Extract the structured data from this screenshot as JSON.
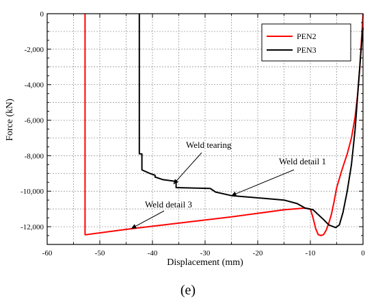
{
  "chart_data": {
    "type": "line",
    "title": "",
    "xlabel": "Displacement (mm)",
    "ylabel": "Force (kN)",
    "xlim": [
      -60,
      0
    ],
    "ylim": [
      -13000,
      0
    ],
    "x_ticks": [
      -60,
      -50,
      -40,
      -30,
      -20,
      -10,
      0
    ],
    "x_tick_labels": [
      "-60",
      "-50",
      "-40",
      "-30",
      "-20",
      "-10",
      "0"
    ],
    "y_ticks": [
      0,
      -2000,
      -4000,
      -6000,
      -8000,
      -10000,
      -12000
    ],
    "y_tick_labels": [
      "0",
      "-2,000",
      "-4,000",
      "-6,000",
      "-8,000",
      "-10,000",
      "-12,000"
    ],
    "grid": true,
    "legend_position": "top-right",
    "series": [
      {
        "name": "PEN2",
        "color": "#ff0000",
        "points": [
          [
            0,
            0
          ],
          [
            -0.3,
            -1500
          ],
          [
            -0.6,
            -3000
          ],
          [
            -1,
            -4500
          ],
          [
            -1.5,
            -5800
          ],
          [
            -2.2,
            -7000
          ],
          [
            -3,
            -7900
          ],
          [
            -4,
            -8800
          ],
          [
            -5,
            -9800
          ],
          [
            -5.5,
            -10600
          ],
          [
            -6,
            -11300
          ],
          [
            -6.5,
            -11800
          ],
          [
            -7,
            -12200
          ],
          [
            -7.5,
            -12450
          ],
          [
            -8,
            -12500
          ],
          [
            -8.5,
            -12450
          ],
          [
            -9,
            -12100
          ],
          [
            -9.5,
            -11500
          ],
          [
            -10,
            -11000
          ],
          [
            -11,
            -10950
          ],
          [
            -15,
            -11050
          ],
          [
            -25,
            -11450
          ],
          [
            -35,
            -11800
          ],
          [
            -45,
            -12150
          ],
          [
            -52.5,
            -12450
          ],
          [
            -52.8,
            -12450
          ],
          [
            -52.8,
            0
          ]
        ]
      },
      {
        "name": "PEN3",
        "color": "#000000",
        "points": [
          [
            0,
            -800
          ],
          [
            -0.5,
            -2500
          ],
          [
            -1,
            -4500
          ],
          [
            -1.5,
            -6500
          ],
          [
            -2.2,
            -8500
          ],
          [
            -3,
            -10000
          ],
          [
            -3.8,
            -11200
          ],
          [
            -4.5,
            -11900
          ],
          [
            -5.2,
            -12050
          ],
          [
            -6.5,
            -11900
          ],
          [
            -7.5,
            -11600
          ],
          [
            -9.5,
            -11050
          ],
          [
            -11,
            -10950
          ],
          [
            -12.5,
            -10700
          ],
          [
            -15,
            -10500
          ],
          [
            -25,
            -10250
          ],
          [
            -28,
            -10050
          ],
          [
            -29,
            -9850
          ],
          [
            -35.5,
            -9800
          ],
          [
            -35.5,
            -9450
          ],
          [
            -38,
            -9350
          ],
          [
            -39.5,
            -9200
          ],
          [
            -39.5,
            -9100
          ],
          [
            -40.5,
            -9000
          ],
          [
            -42,
            -8800
          ],
          [
            -42,
            -7900
          ],
          [
            -42.5,
            -7900
          ],
          [
            -42.5,
            0
          ]
        ]
      }
    ],
    "annotations": [
      {
        "text": "Weld tearing",
        "target": [
          -36,
          -9600
        ]
      },
      {
        "text": "Weld detail 1",
        "target": [
          -25,
          -10250
        ]
      },
      {
        "text": "Weld detail 3",
        "target": [
          -44,
          -12100
        ]
      }
    ]
  },
  "panel_label": "(e)"
}
